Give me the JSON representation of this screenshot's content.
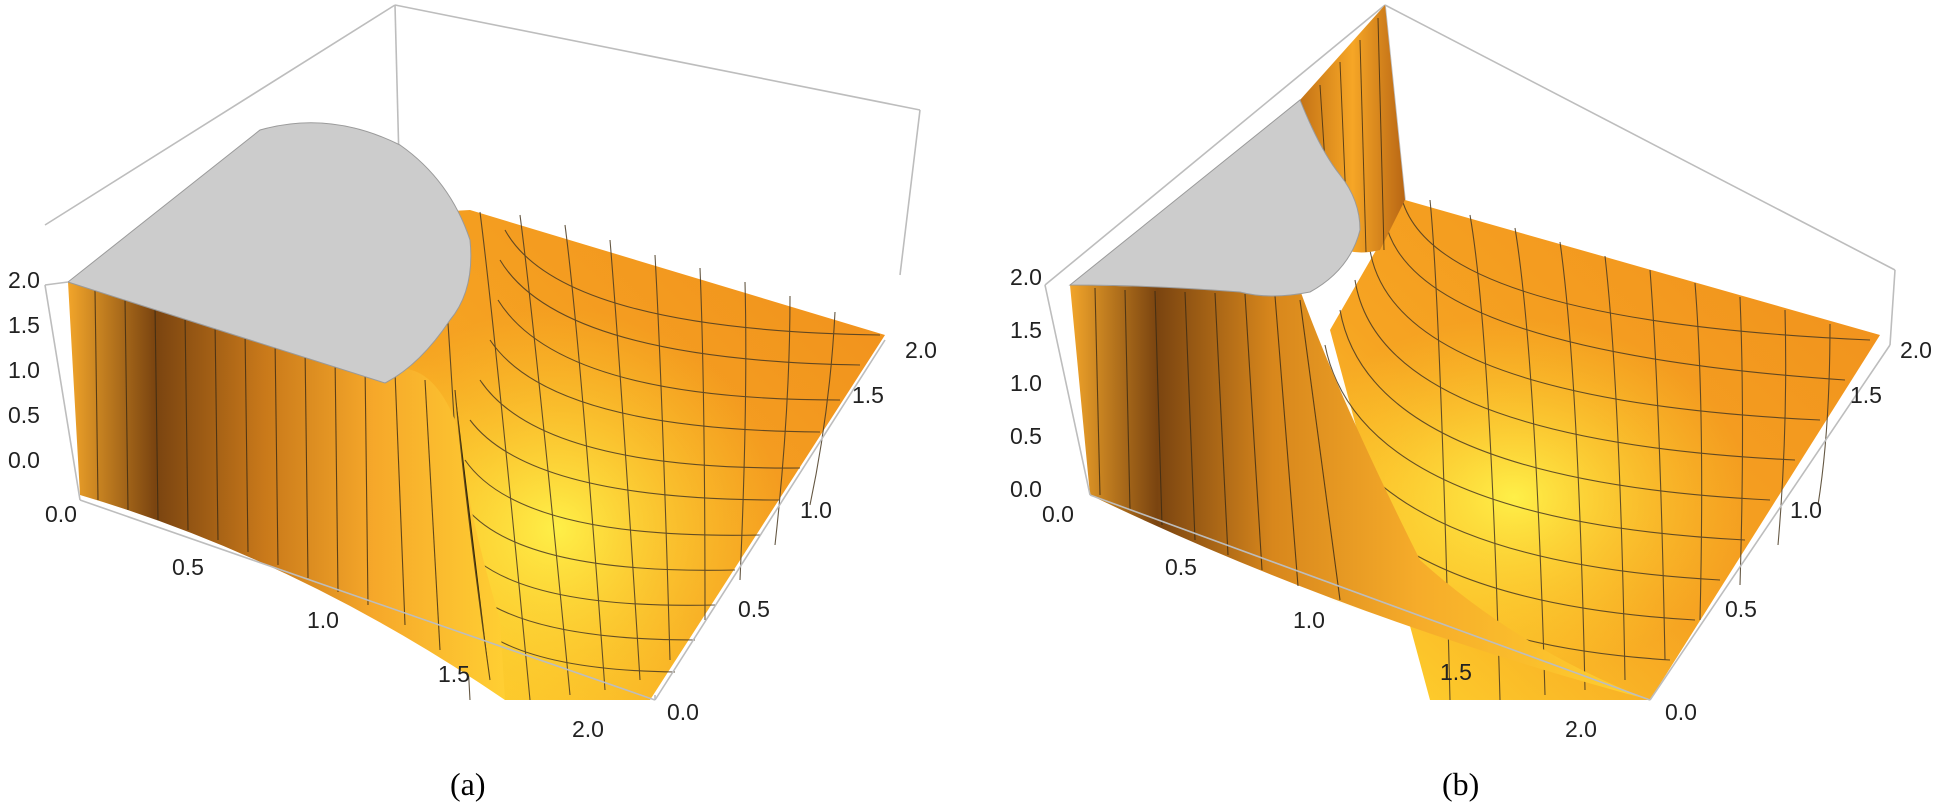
{
  "chart_data": [
    {
      "type": "surface3d",
      "caption": "(a)",
      "x_ticks": [
        "0.0",
        "0.5",
        "1.0",
        "1.5",
        "2.0"
      ],
      "y_ticks": [
        "0.0",
        "0.5",
        "1.0",
        "1.5",
        "2.0"
      ],
      "z_ticks": [
        "0.0",
        "0.5",
        "1.0",
        "1.5",
        "2.0"
      ],
      "xlim": [
        0,
        2
      ],
      "ylim": [
        0,
        2
      ],
      "zlim": [
        0,
        2
      ],
      "colors": {
        "surface": "#f5a623",
        "surface_highlight": "#ffe033",
        "surface_shadow": "#8a4e12",
        "cap": "#cccccc",
        "box": "#bdbdbd"
      }
    },
    {
      "type": "surface3d",
      "caption": "(b)",
      "x_ticks": [
        "0.0",
        "0.5",
        "1.0",
        "1.5",
        "2.0"
      ],
      "y_ticks": [
        "0.0",
        "0.5",
        "1.0",
        "1.5",
        "2.0"
      ],
      "z_ticks": [
        "0.0",
        "0.5",
        "1.0",
        "1.5",
        "2.0"
      ],
      "xlim": [
        0,
        2
      ],
      "ylim": [
        0,
        2
      ],
      "zlim": [
        0,
        2
      ],
      "colors": {
        "surface": "#f5a623",
        "surface_highlight": "#ffe033",
        "surface_shadow": "#8a4e12",
        "cap": "#cccccc",
        "box": "#bdbdbd"
      }
    }
  ]
}
